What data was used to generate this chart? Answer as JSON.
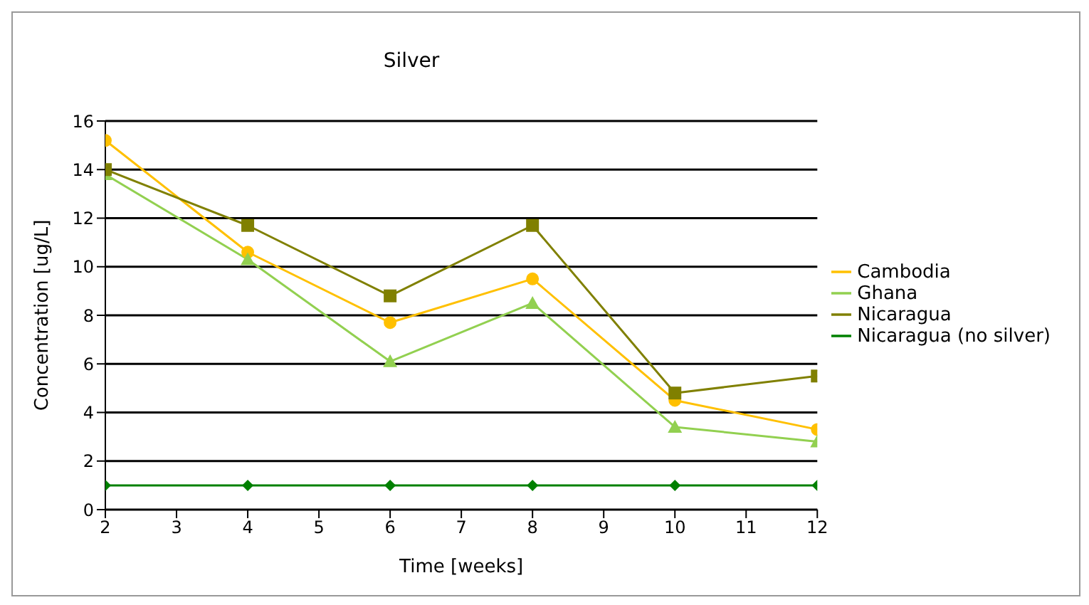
{
  "chart_data": {
    "type": "line",
    "title": "Silver",
    "xlabel": "Time [weeks]",
    "ylabel": "Concentration [ug/L]",
    "x": [
      2,
      4,
      6,
      8,
      10,
      12
    ],
    "xlim": [
      2,
      12
    ],
    "xticks": [
      2,
      3,
      4,
      5,
      6,
      7,
      8,
      9,
      10,
      11,
      12
    ],
    "ylim": [
      0,
      16
    ],
    "yticks": [
      0,
      2,
      4,
      6,
      8,
      10,
      12,
      14,
      16
    ],
    "grid": "y",
    "legend": "right",
    "series": [
      {
        "name": "Cambodia",
        "color": "#ffc000",
        "marker": "circle",
        "values": [
          15.2,
          10.6,
          7.7,
          9.5,
          4.5,
          3.3
        ]
      },
      {
        "name": "Ghana",
        "color": "#92d050",
        "marker": "triangle",
        "values": [
          13.8,
          10.3,
          6.1,
          8.5,
          3.4,
          2.8
        ]
      },
      {
        "name": "Nicaragua",
        "color": "#808000",
        "marker": "square",
        "values": [
          14.0,
          11.7,
          8.8,
          11.7,
          4.8,
          5.5
        ]
      },
      {
        "name": "Nicaragua (no silver)",
        "color": "#008000",
        "marker": "diamond",
        "values": [
          1,
          1,
          1,
          1,
          1,
          1
        ]
      }
    ]
  }
}
